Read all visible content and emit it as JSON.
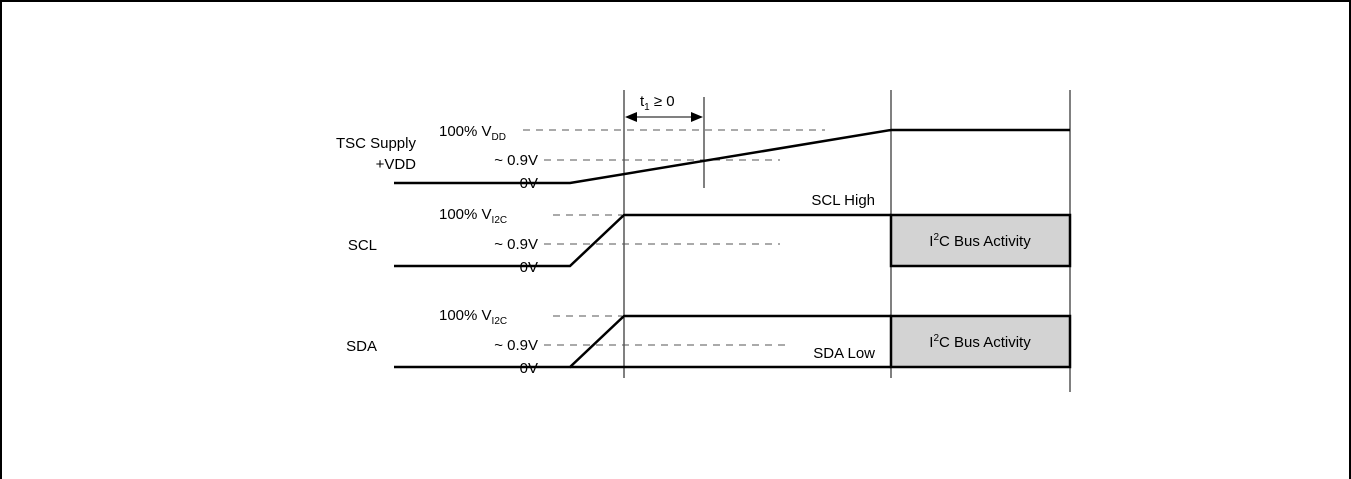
{
  "diagram": {
    "t1_label": {
      "main": "t",
      "sub": "1",
      "rest": " ≥ 0"
    },
    "signals": {
      "tsc": {
        "name_line1": "TSC Supply",
        "name_line2": "+VDD",
        "level_top": {
          "main": "100% V",
          "sub": "DD"
        },
        "level_mid": "~ 0.9V",
        "level_low": "0V"
      },
      "scl": {
        "name": "SCL",
        "level_top": {
          "main": "100% V",
          "sub": "I2C"
        },
        "level_mid": "~ 0.9V",
        "level_low": "0V",
        "state_label": "SCL High",
        "activity": {
          "pre": "I",
          "sup": "2",
          "post": "C Bus Activity"
        }
      },
      "sda": {
        "name": "SDA",
        "level_top": {
          "main": "100% V",
          "sub": "I2C"
        },
        "level_mid": "~ 0.9V",
        "level_low": "0V",
        "state_label": "SDA Low",
        "activity": {
          "pre": "I",
          "sup": "2",
          "post": "C Bus Activity"
        }
      }
    },
    "colors": {
      "line": "#000000",
      "dash": "#555555",
      "activity_fill": "#d3d3d3"
    }
  }
}
